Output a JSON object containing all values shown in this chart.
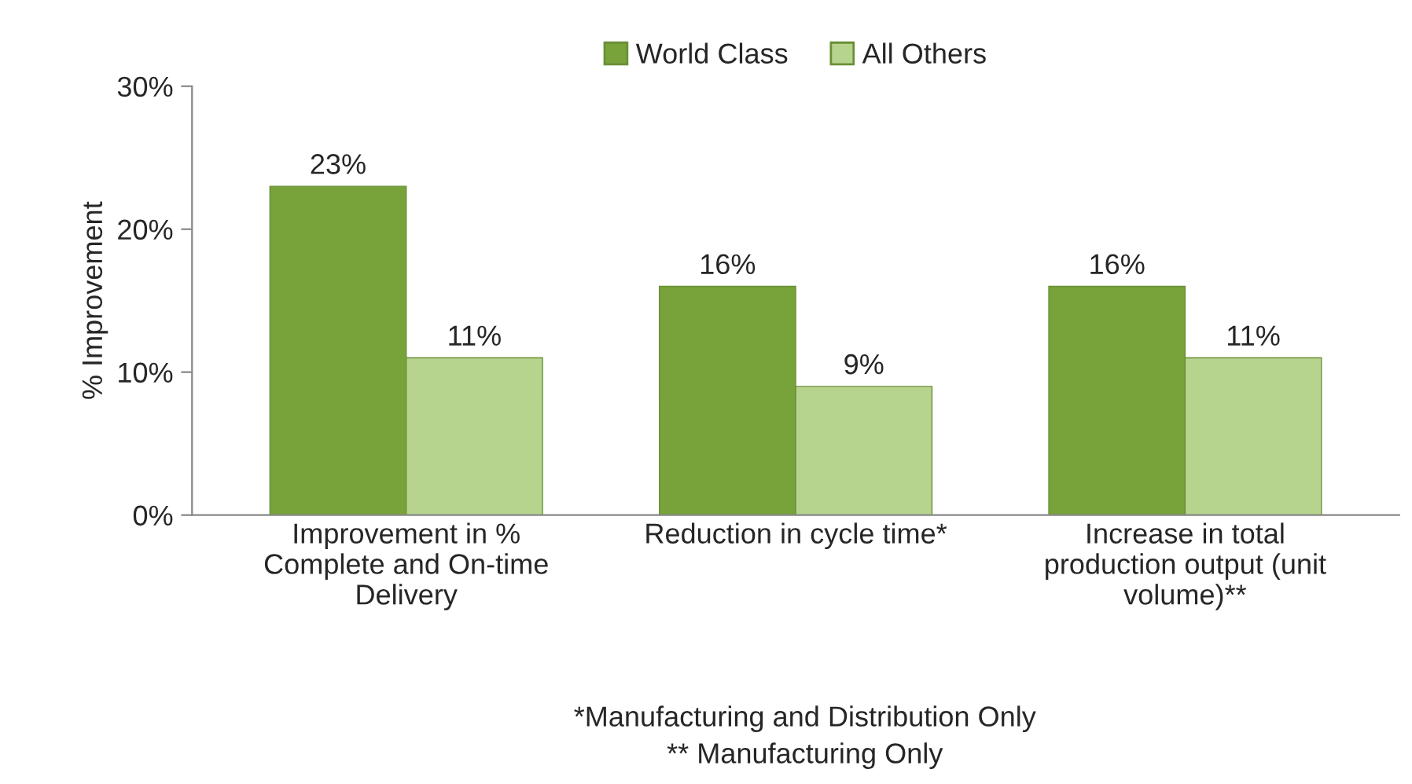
{
  "chart_data": {
    "type": "bar",
    "ylabel": "% Improvement",
    "categories": [
      "Improvement in % Complete and On-time Delivery",
      "Reduction in cycle time*",
      "Increase in total production output (unit volume)**"
    ],
    "series": [
      {
        "name": "World Class",
        "color": "#77a33a",
        "values": [
          23,
          16,
          16
        ],
        "value_labels": [
          "23%",
          "16%",
          "16%"
        ]
      },
      {
        "name": "All Others",
        "color": "#b7d48f",
        "values": [
          11,
          9,
          11
        ],
        "value_labels": [
          "11%",
          "9%",
          "11%"
        ]
      }
    ],
    "ylim": [
      0,
      30
    ],
    "yticks": [
      {
        "value": 0,
        "label": "0%"
      },
      {
        "value": 10,
        "label": "10%"
      },
      {
        "value": 20,
        "label": "20%"
      },
      {
        "value": 30,
        "label": "30%"
      }
    ],
    "legend": "top",
    "grid": false,
    "annotations": [
      "*Manufacturing and Distribution Only",
      "** Manufacturing Only"
    ]
  }
}
